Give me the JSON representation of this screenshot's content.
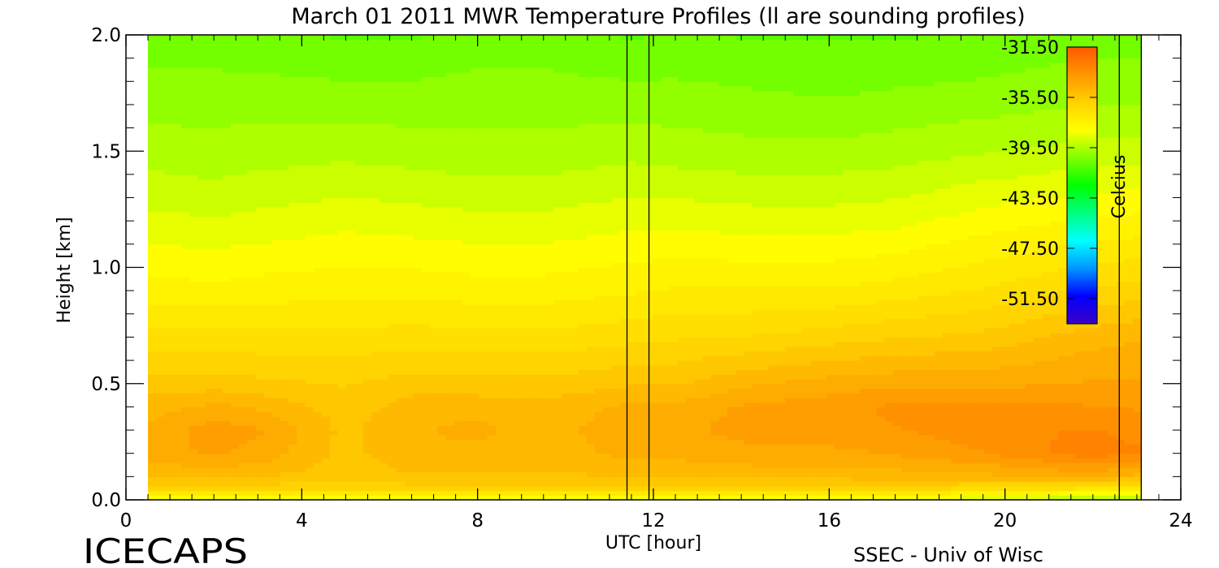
{
  "chart_data": {
    "type": "heatmap",
    "title": "March 01 2011 MWR Temperature Profiles (ll are sounding profiles)",
    "xlabel": "UTC [hour]",
    "ylabel": "Height [km]",
    "xlim": [
      0,
      24
    ],
    "ylim": [
      0,
      2
    ],
    "x_ticks": [
      "0",
      "4",
      "8",
      "12",
      "16",
      "20",
      "24"
    ],
    "y_ticks": [
      "0.0",
      "0.5",
      "1.0",
      "1.5",
      "2.0"
    ],
    "data_x_range": [
      0.5,
      23.1
    ],
    "sounding_times_utc": [
      11.4,
      11.9,
      22.6
    ],
    "colorbar": {
      "label": "Celcius",
      "range": [
        -53.5,
        -31.5
      ],
      "ticks": [
        "-31.50",
        "-35.50",
        "-39.50",
        "-43.50",
        "-47.50",
        "-51.50"
      ],
      "colors": [
        "#3b00c8",
        "#0000ff",
        "#0096ff",
        "#00ffff",
        "#00ff80",
        "#00ff00",
        "#80ff00",
        "#ffff00",
        "#ffd200",
        "#ff9600",
        "#ff5a00"
      ]
    },
    "height_levels_km": [
      0.0,
      0.05,
      0.1,
      0.2,
      0.3,
      0.4,
      0.5,
      0.7,
      0.9,
      1.2,
      1.5,
      1.75,
      2.0
    ],
    "profiles": [
      {
        "t": 0.5,
        "temps": [
          -38.5,
          -36.0,
          -35.2,
          -34.4,
          -34.6,
          -35.0,
          -35.5,
          -36.6,
          -37.5,
          -38.6,
          -39.5,
          -40.0,
          -40.6
        ]
      },
      {
        "t": 2.0,
        "temps": [
          -38.5,
          -36.0,
          -35.2,
          -34.2,
          -34.0,
          -34.6,
          -35.5,
          -36.6,
          -37.6,
          -38.7,
          -39.6,
          -40.0,
          -40.6
        ]
      },
      {
        "t": 3.0,
        "temps": [
          -38.5,
          -36.0,
          -35.2,
          -34.4,
          -34.2,
          -34.8,
          -35.6,
          -36.6,
          -37.5,
          -38.6,
          -39.5,
          -40.0,
          -40.7
        ]
      },
      {
        "t": 5.0,
        "temps": [
          -38.5,
          -36.2,
          -35.6,
          -35.4,
          -35.4,
          -35.5,
          -35.8,
          -36.6,
          -37.4,
          -38.4,
          -39.4,
          -40.1,
          -40.8
        ]
      },
      {
        "t": 6.5,
        "temps": [
          -38.5,
          -36.0,
          -35.3,
          -34.9,
          -34.8,
          -35.0,
          -35.5,
          -36.5,
          -37.4,
          -38.5,
          -39.5,
          -40.1,
          -40.8
        ]
      },
      {
        "t": 8.0,
        "temps": [
          -38.5,
          -36.0,
          -35.3,
          -34.9,
          -34.6,
          -34.9,
          -35.6,
          -36.6,
          -37.5,
          -38.6,
          -39.6,
          -40.0,
          -40.6
        ]
      },
      {
        "t": 9.5,
        "temps": [
          -38.5,
          -36.0,
          -35.3,
          -35.0,
          -35.0,
          -35.1,
          -35.6,
          -36.6,
          -37.5,
          -38.6,
          -39.6,
          -40.0,
          -40.6
        ]
      },
      {
        "t": 11.5,
        "temps": [
          -38.5,
          -36.0,
          -35.3,
          -34.6,
          -34.4,
          -34.6,
          -35.3,
          -36.4,
          -37.3,
          -38.4,
          -39.4,
          -40.1,
          -40.8
        ]
      },
      {
        "t": 12.5,
        "temps": [
          -38.5,
          -36.0,
          -35.2,
          -34.6,
          -34.4,
          -34.6,
          -35.3,
          -36.3,
          -37.2,
          -38.4,
          -39.5,
          -40.1,
          -40.7
        ]
      },
      {
        "t": 14.3,
        "temps": [
          -38.5,
          -36.0,
          -35.1,
          -34.4,
          -34.0,
          -34.1,
          -34.8,
          -36.2,
          -37.2,
          -38.5,
          -39.6,
          -40.2,
          -40.8
        ]
      },
      {
        "t": 16.0,
        "temps": [
          -38.5,
          -36.0,
          -35.1,
          -34.4,
          -34.0,
          -34.0,
          -34.5,
          -36.0,
          -37.2,
          -38.5,
          -39.6,
          -40.3,
          -40.8
        ]
      },
      {
        "t": 17.5,
        "temps": [
          -38.6,
          -36.0,
          -35.0,
          -34.2,
          -33.8,
          -33.6,
          -34.4,
          -35.8,
          -37.0,
          -38.4,
          -39.5,
          -40.2,
          -40.8
        ]
      },
      {
        "t": 19.5,
        "temps": [
          -38.8,
          -36.4,
          -34.9,
          -33.8,
          -33.4,
          -33.6,
          -34.4,
          -35.6,
          -36.7,
          -38.0,
          -39.3,
          -40.1,
          -40.7
        ]
      },
      {
        "t": 21.8,
        "temps": [
          -39.5,
          -36.8,
          -34.6,
          -33.0,
          -33.2,
          -33.7,
          -34.2,
          -35.0,
          -36.2,
          -37.7,
          -39.1,
          -39.9,
          -40.5
        ]
      },
      {
        "t": 23.1,
        "temps": [
          -39.5,
          -37.0,
          -35.0,
          -33.2,
          -33.4,
          -33.8,
          -34.2,
          -34.8,
          -36.0,
          -37.6,
          -39.0,
          -39.9,
          -40.5
        ]
      }
    ]
  },
  "branding": {
    "logo_text": "ICECAPS",
    "credit": "SSEC - Univ of Wisc"
  }
}
